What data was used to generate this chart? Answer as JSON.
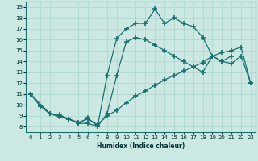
{
  "xlabel": "Humidex (Indice chaleur)",
  "xlim": [
    -0.5,
    23.5
  ],
  "ylim": [
    7.5,
    19.5
  ],
  "xticks": [
    0,
    1,
    2,
    3,
    4,
    5,
    6,
    7,
    8,
    9,
    10,
    11,
    12,
    13,
    14,
    15,
    16,
    17,
    18,
    19,
    20,
    21,
    22,
    23
  ],
  "yticks": [
    8,
    9,
    10,
    11,
    12,
    13,
    14,
    15,
    16,
    17,
    18,
    19
  ],
  "bg_color": "#cce8e2",
  "line_color": "#1a7070",
  "grid_color": "#aad4cc",
  "line1_x": [
    0,
    1,
    2,
    3,
    4,
    5,
    6,
    7,
    8,
    9,
    10,
    11,
    12,
    13,
    14,
    15,
    16,
    17,
    18,
    19,
    20,
    21
  ],
  "line1_y": [
    11.0,
    9.9,
    9.2,
    8.9,
    8.7,
    8.3,
    8.3,
    8.0,
    12.7,
    16.1,
    17.0,
    17.5,
    17.5,
    18.8,
    17.5,
    18.0,
    17.5,
    17.2,
    16.2,
    14.5,
    14.0,
    14.5
  ],
  "line2_x": [
    0,
    2,
    3,
    4,
    5,
    6,
    7,
    8,
    9,
    10,
    11,
    12,
    13,
    14,
    15,
    16,
    17,
    18,
    19,
    20,
    21,
    22,
    23
  ],
  "line2_y": [
    11.0,
    9.2,
    9.0,
    8.7,
    8.3,
    8.8,
    8.0,
    9.2,
    12.7,
    15.8,
    16.2,
    16.0,
    15.5,
    15.0,
    14.5,
    14.0,
    13.5,
    13.0,
    14.5,
    14.0,
    13.8,
    14.5,
    12.0
  ],
  "line3_x": [
    0,
    1,
    2,
    3,
    4,
    5,
    6,
    7,
    8,
    9,
    10,
    11,
    12,
    13,
    14,
    15,
    16,
    17,
    18,
    19,
    20,
    21,
    22,
    23
  ],
  "line3_y": [
    11.0,
    9.9,
    9.2,
    9.1,
    8.7,
    8.4,
    8.7,
    8.2,
    9.0,
    9.5,
    10.2,
    10.8,
    11.3,
    11.8,
    12.3,
    12.7,
    13.1,
    13.5,
    13.9,
    14.5,
    14.8,
    15.0,
    15.3,
    12.0
  ]
}
